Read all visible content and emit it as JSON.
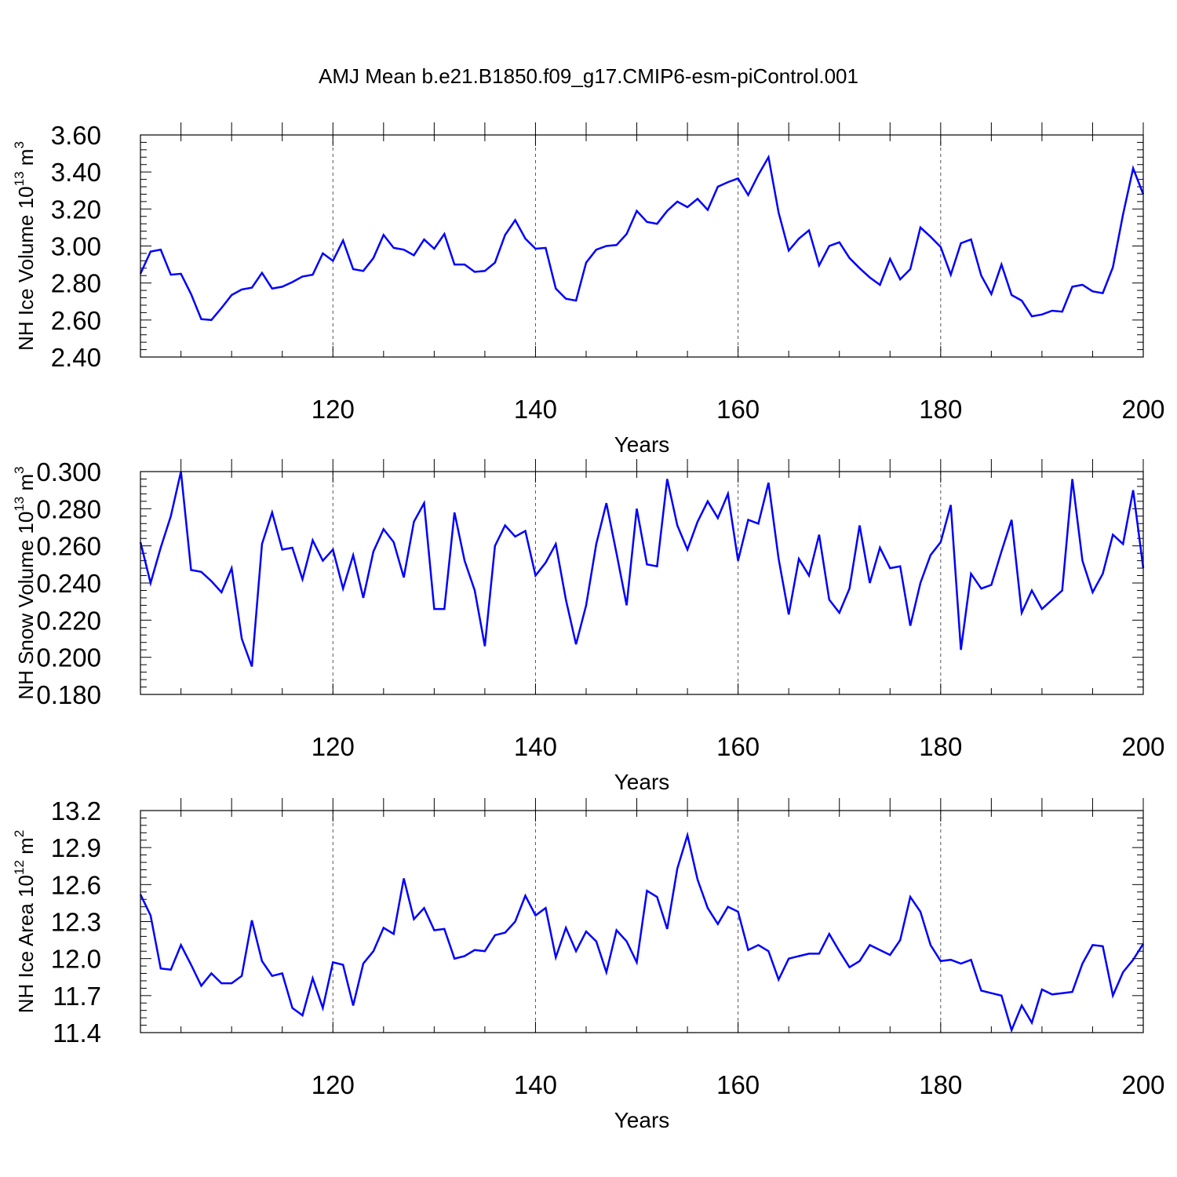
{
  "title": "AMJ Mean b.e21.B1850.f09_g17.CMIP6-esm-piControl.001",
  "colors": {
    "line": "#0000ff",
    "axis": "#000000",
    "grid": "#555555"
  },
  "chart_data": [
    {
      "type": "line",
      "name": "ice-volume",
      "ylabel_main": "NH Ice Volume 10",
      "ylabel_exp": "13",
      "ylabel_unit": " m",
      "ylabel_unit_exp": "3",
      "xlabel": "Years",
      "xlim": [
        101,
        200
      ],
      "ylim": [
        2.4,
        3.6
      ],
      "yticks": [
        2.4,
        2.6,
        2.8,
        3.0,
        3.2,
        3.4,
        3.6
      ],
      "ytick_labels": [
        "2.40",
        "2.60",
        "2.80",
        "3.00",
        "3.20",
        "3.40",
        "3.60"
      ],
      "xticks": [
        120,
        140,
        160,
        180,
        200
      ],
      "xtick_labels": [
        "120",
        "140",
        "160",
        "180",
        "200"
      ],
      "x_start": 101,
      "values": [
        2.85,
        2.97,
        2.98,
        2.845,
        2.85,
        2.74,
        2.605,
        2.6,
        2.665,
        2.735,
        2.765,
        2.775,
        2.855,
        2.77,
        2.78,
        2.805,
        2.835,
        2.845,
        2.96,
        2.92,
        3.03,
        2.875,
        2.865,
        2.935,
        3.06,
        2.99,
        2.98,
        2.95,
        3.035,
        2.985,
        3.065,
        2.9,
        2.9,
        2.86,
        2.865,
        2.91,
        3.06,
        3.14,
        3.04,
        2.985,
        2.99,
        2.77,
        2.715,
        2.705,
        2.91,
        2.98,
        3.0,
        3.005,
        3.065,
        3.19,
        3.13,
        3.12,
        3.19,
        3.24,
        3.21,
        3.255,
        3.195,
        3.32,
        3.345,
        3.365,
        3.275,
        3.385,
        3.48,
        3.18,
        2.975,
        3.04,
        3.085,
        2.895,
        3.0,
        3.02,
        2.935,
        2.88,
        2.83,
        2.79,
        2.93,
        2.82,
        2.875,
        3.1,
        3.05,
        2.995,
        2.845,
        3.015,
        3.035,
        2.84,
        2.74,
        2.9,
        2.735,
        2.705,
        2.62,
        2.63,
        2.65,
        2.645,
        2.78,
        2.79,
        2.755,
        2.745,
        2.885,
        3.17,
        3.42,
        3.28
      ]
    },
    {
      "type": "line",
      "name": "snow-volume",
      "ylabel_main": "NH Snow Volume 10",
      "ylabel_exp": "13",
      "ylabel_unit": " m",
      "ylabel_unit_exp": "3",
      "xlabel": "Years",
      "xlim": [
        101,
        200
      ],
      "ylim": [
        0.18,
        0.3
      ],
      "yticks": [
        0.18,
        0.2,
        0.22,
        0.24,
        0.26,
        0.28,
        0.3
      ],
      "ytick_labels": [
        "0.180",
        "0.200",
        "0.220",
        "0.240",
        "0.260",
        "0.280",
        "0.300"
      ],
      "xticks": [
        120,
        140,
        160,
        180,
        200
      ],
      "xtick_labels": [
        "120",
        "140",
        "160",
        "180",
        "200"
      ],
      "x_start": 101,
      "values": [
        0.262,
        0.24,
        0.259,
        0.276,
        0.3,
        0.247,
        0.246,
        0.241,
        0.235,
        0.248,
        0.21,
        0.195,
        0.261,
        0.278,
        0.258,
        0.259,
        0.242,
        0.263,
        0.252,
        0.258,
        0.237,
        0.255,
        0.232,
        0.257,
        0.269,
        0.262,
        0.243,
        0.273,
        0.283,
        0.226,
        0.226,
        0.278,
        0.252,
        0.236,
        0.206,
        0.26,
        0.271,
        0.265,
        0.268,
        0.244,
        0.251,
        0.261,
        0.231,
        0.207,
        0.228,
        0.261,
        0.283,
        0.256,
        0.228,
        0.28,
        0.25,
        0.249,
        0.296,
        0.271,
        0.258,
        0.273,
        0.284,
        0.275,
        0.288,
        0.252,
        0.274,
        0.272,
        0.294,
        0.253,
        0.223,
        0.253,
        0.244,
        0.266,
        0.231,
        0.224,
        0.237,
        0.271,
        0.24,
        0.259,
        0.248,
        0.249,
        0.217,
        0.24,
        0.255,
        0.262,
        0.282,
        0.204,
        0.245,
        0.237,
        0.239,
        0.257,
        0.274,
        0.224,
        0.236,
        0.226,
        0.231,
        0.236,
        0.296,
        0.252,
        0.235,
        0.245,
        0.266,
        0.261,
        0.29,
        0.248
      ]
    },
    {
      "type": "line",
      "name": "ice-area",
      "ylabel_main": "NH Ice Area 10",
      "ylabel_exp": "12",
      "ylabel_unit": " m",
      "ylabel_unit_exp": "2",
      "xlabel": "Years",
      "xlim": [
        101,
        200
      ],
      "ylim": [
        11.4,
        13.2
      ],
      "yticks": [
        11.4,
        11.7,
        12.0,
        12.3,
        12.6,
        12.9,
        13.2
      ],
      "ytick_labels": [
        "11.4",
        "11.7",
        "12.0",
        "12.3",
        "12.6",
        "12.9",
        "13.2"
      ],
      "xticks": [
        120,
        140,
        160,
        180,
        200
      ],
      "xtick_labels": [
        "120",
        "140",
        "160",
        "180",
        "200"
      ],
      "x_start": 101,
      "values": [
        12.52,
        12.35,
        11.92,
        11.91,
        12.11,
        11.95,
        11.78,
        11.88,
        11.8,
        11.8,
        11.86,
        12.31,
        11.98,
        11.86,
        11.88,
        11.6,
        11.54,
        11.84,
        11.6,
        11.97,
        11.95,
        11.62,
        11.96,
        12.06,
        12.25,
        12.2,
        12.65,
        12.32,
        12.41,
        12.23,
        12.24,
        12.0,
        12.02,
        12.07,
        12.06,
        12.19,
        12.21,
        12.3,
        12.51,
        12.35,
        12.41,
        12.01,
        12.25,
        12.06,
        12.22,
        12.14,
        11.89,
        12.23,
        12.14,
        11.97,
        12.55,
        12.5,
        12.24,
        12.73,
        13.0,
        12.64,
        12.41,
        12.28,
        12.42,
        12.38,
        12.07,
        12.11,
        12.06,
        11.83,
        12.0,
        12.02,
        12.04,
        12.04,
        12.2,
        12.06,
        11.93,
        11.98,
        12.11,
        12.07,
        12.03,
        12.15,
        12.5,
        12.38,
        12.11,
        11.98,
        11.99,
        11.96,
        11.99,
        11.74,
        11.72,
        11.7,
        11.42,
        11.62,
        11.48,
        11.75,
        11.71,
        11.72,
        11.73,
        11.96,
        12.11,
        12.1,
        11.7,
        11.89,
        11.99,
        12.12
      ]
    }
  ]
}
